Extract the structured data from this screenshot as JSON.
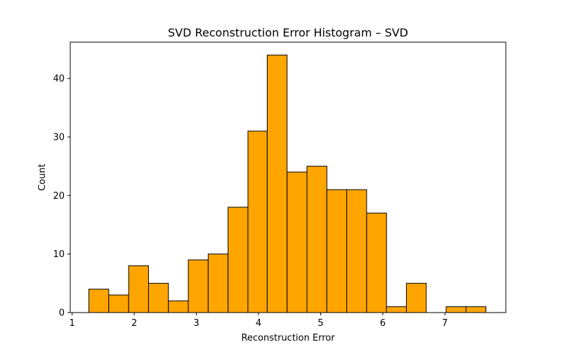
{
  "chart_data": {
    "type": "bar",
    "title": "SVD Reconstruction Error Histogram – SVD",
    "xlabel": "Reconstruction Error",
    "ylabel": "Count",
    "xlim": [
      0.97,
      7.98
    ],
    "ylim": [
      0,
      46.2
    ],
    "xticks": [
      1,
      2,
      3,
      4,
      5,
      6,
      7
    ],
    "yticks": [
      0,
      10,
      20,
      30,
      40
    ],
    "bins": {
      "edges": [
        1.27,
        1.59,
        1.91,
        2.23,
        2.55,
        2.87,
        3.19,
        3.51,
        3.83,
        4.14,
        4.46,
        4.78,
        5.1,
        5.42,
        5.74,
        6.06,
        6.38,
        6.7,
        7.02,
        7.34,
        7.66
      ],
      "counts": [
        4,
        3,
        8,
        5,
        2,
        9,
        10,
        18,
        31,
        44,
        24,
        25,
        21,
        21,
        17,
        1,
        5,
        0,
        1,
        1
      ]
    },
    "colors": {
      "bar_fill": "#ffa500",
      "bar_edge": "#000000"
    },
    "grid": false
  }
}
